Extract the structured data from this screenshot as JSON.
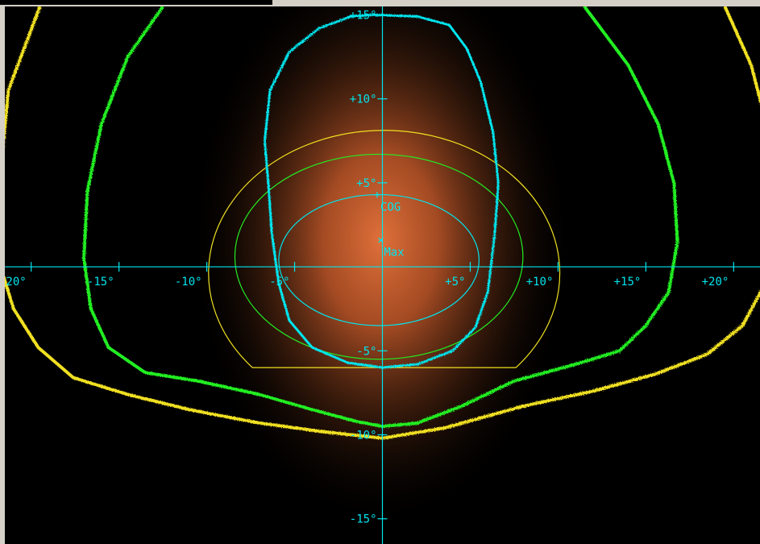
{
  "window": {
    "frame_color": "#d4d0c8"
  },
  "chart_data": {
    "type": "contour",
    "xlim": [
      -21.5,
      21.5
    ],
    "ylim": [
      -16.5,
      15.5
    ],
    "grid": false,
    "axis_color": "#00e5ee",
    "x_ticks": [
      {
        "value": -20,
        "label": "-20°"
      },
      {
        "value": -15,
        "label": "-15°"
      },
      {
        "value": -10,
        "label": "-10°"
      },
      {
        "value": -5,
        "label": "-5°"
      },
      {
        "value": 5,
        "label": "+5°"
      },
      {
        "value": 10,
        "label": "+10°"
      },
      {
        "value": 15,
        "label": "+15°"
      },
      {
        "value": 20,
        "label": "+20°"
      }
    ],
    "y_ticks": [
      {
        "value": 15,
        "label": "+15°"
      },
      {
        "value": 10,
        "label": "+10°"
      },
      {
        "value": 5,
        "label": "+5°"
      },
      {
        "value": -5,
        "label": "-5°"
      },
      {
        "value": -10,
        "label": "-10°"
      },
      {
        "value": -15,
        "label": "-15°"
      }
    ],
    "markers": [
      {
        "label": "COG",
        "symbol": "+",
        "x": -0.3,
        "y": 4.3,
        "color": "#00e5ee"
      },
      {
        "label": "Max",
        "symbol": "×",
        "x": -0.1,
        "y": 1.6,
        "color": "#00e5ee"
      }
    ],
    "intensity_center": {
      "x": -0.1,
      "y": 1.6,
      "color": "#e0703a"
    },
    "iso_contours": [
      {
        "color": "#00e5ee",
        "points": [
          [
            -0.5,
            15.0
          ],
          [
            2.0,
            14.9
          ],
          [
            3.8,
            14.4
          ],
          [
            4.8,
            13.0
          ],
          [
            5.6,
            11.0
          ],
          [
            6.3,
            8.0
          ],
          [
            6.6,
            5.0
          ],
          [
            6.4,
            2.0
          ],
          [
            6.0,
            -1.5
          ],
          [
            5.3,
            -3.6
          ],
          [
            4.0,
            -5.0
          ],
          [
            2.0,
            -5.8
          ],
          [
            0,
            -6.0
          ],
          [
            -2.0,
            -5.7
          ],
          [
            -4.0,
            -4.8
          ],
          [
            -5.3,
            -3.2
          ],
          [
            -5.9,
            -1.0
          ],
          [
            -6.3,
            2.0
          ],
          [
            -6.5,
            5.0
          ],
          [
            -6.7,
            7.5
          ],
          [
            -6.4,
            10.5
          ],
          [
            -5.3,
            12.8
          ],
          [
            -3.6,
            14.2
          ],
          [
            -1.8,
            14.9
          ]
        ]
      },
      {
        "color": "#22ee22",
        "points": [
          [
            -12.5,
            15.5
          ],
          [
            -14.5,
            12.5
          ],
          [
            -16.0,
            8.5
          ],
          [
            -16.8,
            4.5
          ],
          [
            -17.0,
            0.5
          ],
          [
            -16.6,
            -2.5
          ],
          [
            -15.6,
            -4.8
          ],
          [
            -13.5,
            -6.3
          ],
          [
            -10.5,
            -6.8
          ],
          [
            -7.0,
            -7.6
          ],
          [
            -4.0,
            -8.5
          ],
          [
            -1.5,
            -9.2
          ],
          [
            0,
            -9.5
          ],
          [
            2.0,
            -9.3
          ],
          [
            4.5,
            -8.3
          ],
          [
            7.5,
            -6.8
          ],
          [
            11.0,
            -5.8
          ],
          [
            13.5,
            -5.0
          ],
          [
            15.0,
            -3.5
          ],
          [
            16.3,
            -1.5
          ],
          [
            16.8,
            1.5
          ],
          [
            16.6,
            5.0
          ],
          [
            15.7,
            8.5
          ],
          [
            14.0,
            12.0
          ],
          [
            11.5,
            15.5
          ]
        ]
      },
      {
        "color": "#f0e020",
        "points": [
          [
            -19.5,
            15.5
          ],
          [
            -21.3,
            10.5
          ],
          [
            -21.8,
            5.0
          ],
          [
            -21.9,
            0.5
          ],
          [
            -21.0,
            -2.5
          ],
          [
            -19.6,
            -4.8
          ],
          [
            -17.6,
            -6.6
          ],
          [
            -14.5,
            -7.6
          ],
          [
            -11.0,
            -8.5
          ],
          [
            -7.0,
            -9.3
          ],
          [
            -3.5,
            -9.8
          ],
          [
            0,
            -10.2
          ],
          [
            3.5,
            -9.6
          ],
          [
            8.0,
            -8.3
          ],
          [
            12.0,
            -7.4
          ],
          [
            15.5,
            -6.4
          ],
          [
            18.5,
            -5.2
          ],
          [
            20.5,
            -3.5
          ],
          [
            21.8,
            -1.0
          ],
          [
            22.3,
            3.0
          ],
          [
            22.0,
            8.0
          ],
          [
            21.0,
            12.0
          ],
          [
            19.5,
            15.5
          ]
        ]
      }
    ],
    "rings": [
      {
        "color": "#00e5ee",
        "cx": -0.2,
        "cy": 0.4,
        "rx": 5.7,
        "ry": 3.9
      },
      {
        "color": "#22ee22",
        "cx": -0.2,
        "cy": 0.6,
        "rx": 8.2,
        "ry": 6.1
      },
      {
        "color": "#f0e020",
        "cx": -0.2,
        "cy": 0.0,
        "rx": 10.0,
        "ry": 8.5,
        "clip_y": -6.0,
        "flat_left": -7.4,
        "flat_right": 7.6
      }
    ]
  }
}
